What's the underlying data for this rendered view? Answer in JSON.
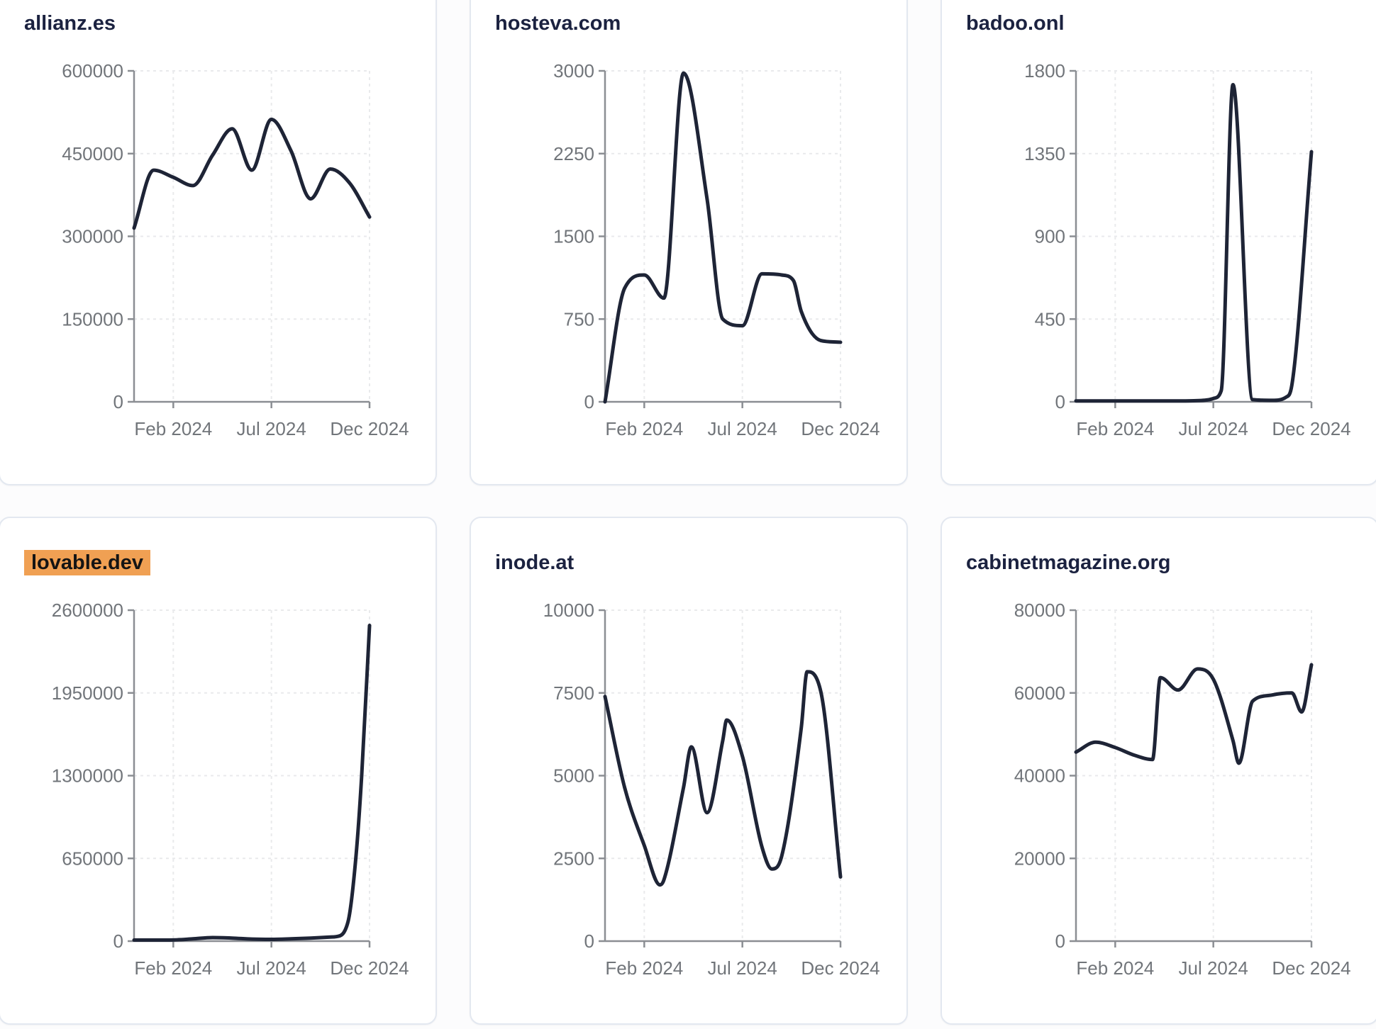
{
  "page": {
    "background": "#fcfcfd",
    "description": "Grid of six website traffic line charts, one per domain, Dec 2023 through Dec 2024"
  },
  "style": {
    "line_color": "#1e2436",
    "line_width": 5,
    "grid_color": "#e9eaec",
    "axis_color": "#8b8e93",
    "tick_label_color": "#71757a",
    "title_color": "#1b2240",
    "card_border": "#e3e8f0",
    "card_bg": "#ffffff",
    "highlight_bg": "#f0a053",
    "highlight_text": "#141414"
  },
  "chart_data": [
    {
      "type": "line",
      "title": "allianz.es",
      "title_highlighted": false,
      "x_domain_months": [
        "Dec 2023",
        "Dec 2024"
      ],
      "x_tick_labels": [
        "Feb 2024",
        "Jul 2024",
        "Dec 2024"
      ],
      "x_tick_positions": [
        2,
        7,
        12
      ],
      "ylim": [
        0,
        600000
      ],
      "y_ticks": [
        0,
        150000,
        300000,
        450000,
        600000
      ],
      "grid": "dashed",
      "points": [
        [
          0,
          315000
        ],
        [
          1,
          420000
        ],
        [
          2,
          407000
        ],
        [
          3,
          392000
        ],
        [
          4,
          447000
        ],
        [
          5,
          495000
        ],
        [
          6,
          420000
        ],
        [
          7,
          512000
        ],
        [
          8,
          455000
        ],
        [
          9,
          368000
        ],
        [
          10,
          422000
        ],
        [
          11,
          396000
        ],
        [
          12,
          335000
        ]
      ]
    },
    {
      "type": "line",
      "title": "hosteva.com",
      "title_highlighted": false,
      "x_domain_months": [
        "Dec 2023",
        "Dec 2024"
      ],
      "x_tick_labels": [
        "Feb 2024",
        "Jul 2024",
        "Dec 2024"
      ],
      "x_tick_positions": [
        2,
        7,
        12
      ],
      "ylim": [
        0,
        3000
      ],
      "y_ticks": [
        0,
        750,
        1500,
        2250,
        3000
      ],
      "grid": "dashed",
      "points": [
        [
          0,
          0
        ],
        [
          1,
          1030
        ],
        [
          2,
          1150
        ],
        [
          3,
          940
        ],
        [
          4,
          2980
        ],
        [
          5.2,
          1840
        ],
        [
          6,
          750
        ],
        [
          7,
          690
        ],
        [
          8,
          1160
        ],
        [
          9,
          1150
        ],
        [
          9.6,
          1100
        ],
        [
          10,
          820
        ],
        [
          11,
          555
        ],
        [
          12,
          540
        ]
      ]
    },
    {
      "type": "line",
      "title": "badoo.onl",
      "title_highlighted": false,
      "x_domain_months": [
        "Dec 2023",
        "Dec 2024"
      ],
      "x_tick_labels": [
        "Feb 2024",
        "Jul 2024",
        "Dec 2024"
      ],
      "x_tick_positions": [
        2,
        7,
        12
      ],
      "ylim": [
        0,
        1800
      ],
      "y_ticks": [
        0,
        450,
        900,
        1350,
        1800
      ],
      "grid": "dashed",
      "points": [
        [
          0,
          5
        ],
        [
          1,
          5
        ],
        [
          2,
          5
        ],
        [
          3,
          5
        ],
        [
          4,
          5
        ],
        [
          5,
          5
        ],
        [
          6,
          6
        ],
        [
          7,
          18
        ],
        [
          7.4,
          60
        ],
        [
          8,
          1725
        ],
        [
          9,
          12
        ],
        [
          10,
          8
        ],
        [
          10.7,
          25
        ],
        [
          11,
          90
        ],
        [
          12,
          1360
        ]
      ]
    },
    {
      "type": "line",
      "title": "lovable.dev",
      "title_highlighted": true,
      "x_domain_months": [
        "Dec 2023",
        "Dec 2024"
      ],
      "x_tick_labels": [
        "Feb 2024",
        "Jul 2024",
        "Dec 2024"
      ],
      "x_tick_positions": [
        2,
        7,
        12
      ],
      "ylim": [
        0,
        2600000
      ],
      "y_ticks": [
        0,
        650000,
        1300000,
        1950000,
        2600000
      ],
      "grid": "dashed",
      "points": [
        [
          0,
          8000
        ],
        [
          1,
          8000
        ],
        [
          2,
          9000
        ],
        [
          3,
          18000
        ],
        [
          4,
          28000
        ],
        [
          5,
          24000
        ],
        [
          6,
          16000
        ],
        [
          7,
          14000
        ],
        [
          8,
          18000
        ],
        [
          9,
          24000
        ],
        [
          10,
          32000
        ],
        [
          10.3,
          35000
        ],
        [
          10.9,
          150000
        ],
        [
          11.3,
          650000
        ],
        [
          11.6,
          1300000
        ],
        [
          12,
          2480000
        ]
      ]
    },
    {
      "type": "line",
      "title": "inode.at",
      "title_highlighted": false,
      "x_domain_months": [
        "Dec 2023",
        "Dec 2024"
      ],
      "x_tick_labels": [
        "Feb 2024",
        "Jul 2024",
        "Dec 2024"
      ],
      "x_tick_positions": [
        2,
        7,
        12
      ],
      "ylim": [
        0,
        10000
      ],
      "y_ticks": [
        0,
        2500,
        5000,
        7500,
        10000
      ],
      "grid": "dashed",
      "points": [
        [
          0,
          7390
        ],
        [
          1,
          4640
        ],
        [
          2,
          2890
        ],
        [
          2.8,
          1700
        ],
        [
          3,
          1850
        ],
        [
          4,
          4640
        ],
        [
          4.4,
          5870
        ],
        [
          5.2,
          3880
        ],
        [
          6,
          6060
        ],
        [
          6.2,
          6680
        ],
        [
          7,
          5590
        ],
        [
          8,
          2840
        ],
        [
          8.5,
          2180
        ],
        [
          9,
          2560
        ],
        [
          10,
          6440
        ],
        [
          10.3,
          8140
        ],
        [
          11,
          7530
        ],
        [
          12,
          1940
        ]
      ]
    },
    {
      "type": "line",
      "title": "cabinetmagazine.org",
      "title_highlighted": false,
      "x_domain_months": [
        "Dec 2023",
        "Dec 2024"
      ],
      "x_tick_labels": [
        "Feb 2024",
        "Jul 2024",
        "Dec 2024"
      ],
      "x_tick_positions": [
        2,
        7,
        12
      ],
      "ylim": [
        0,
        80000
      ],
      "y_ticks": [
        0,
        20000,
        40000,
        60000,
        80000
      ],
      "grid": "dashed",
      "points": [
        [
          0,
          45700
        ],
        [
          1,
          48100
        ],
        [
          2,
          46800
        ],
        [
          3,
          44900
        ],
        [
          3.9,
          43900
        ],
        [
          4.3,
          63700
        ],
        [
          5.2,
          60700
        ],
        [
          6.2,
          65800
        ],
        [
          7,
          63300
        ],
        [
          8,
          48500
        ],
        [
          8.3,
          43000
        ],
        [
          9,
          58000
        ],
        [
          10,
          59500
        ],
        [
          11,
          60000
        ],
        [
          11.5,
          55400
        ],
        [
          12,
          66800
        ]
      ]
    }
  ]
}
